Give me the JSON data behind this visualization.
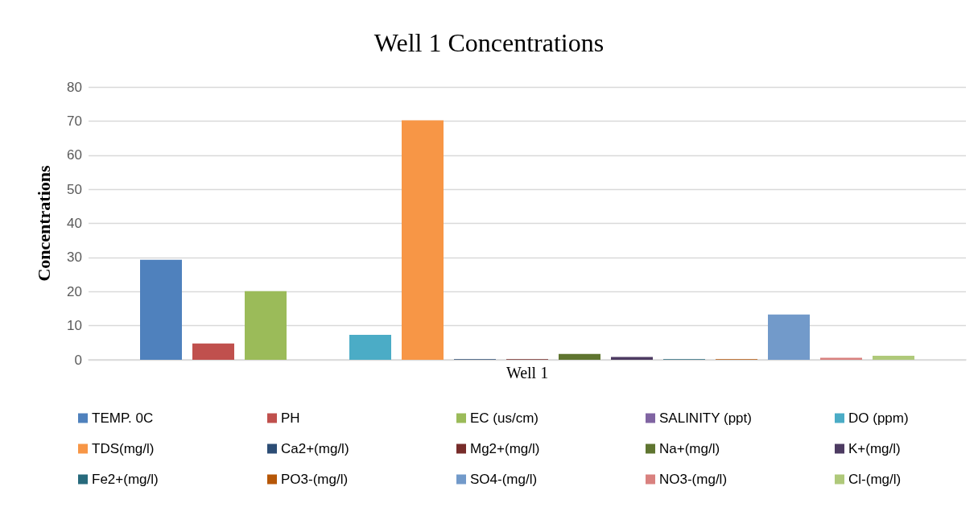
{
  "chart_data": {
    "type": "bar",
    "title": "Well 1 Concentrations",
    "ylabel": "Concentrations",
    "categories": [
      "Well 1"
    ],
    "series": [
      {
        "name": "TEMP. 0C",
        "color": "#4f81bd",
        "values": [
          29.3
        ]
      },
      {
        "name": "PH",
        "color": "#c0504d",
        "values": [
          4.8
        ]
      },
      {
        "name": "EC (us/cm)",
        "color": "#9bbb59",
        "values": [
          20.1
        ]
      },
      {
        "name": "SALINITY (ppt)",
        "color": "#8064a2",
        "values": [
          0
        ]
      },
      {
        "name": "DO (ppm)",
        "color": "#4bacc6",
        "values": [
          7.3
        ]
      },
      {
        "name": "TDS(mg/l)",
        "color": "#f79646",
        "values": [
          70.2
        ]
      },
      {
        "name": "Ca2+(mg/l)",
        "color": "#2c4d75",
        "values": [
          0.2
        ]
      },
      {
        "name": "Mg2+(mg/l)",
        "color": "#772c2a",
        "values": [
          0.2
        ]
      },
      {
        "name": "Na+(mg/l)",
        "color": "#5f7530",
        "values": [
          1.7
        ]
      },
      {
        "name": "K+(mg/l)",
        "color": "#4d3b62",
        "values": [
          0.8
        ]
      },
      {
        "name": "Fe2+(mg/l)",
        "color": "#276a7c",
        "values": [
          0.2
        ]
      },
      {
        "name": "PO3-(mg/l)",
        "color": "#b65708",
        "values": [
          0.2
        ]
      },
      {
        "name": "SO4-(mg/l)",
        "color": "#729aca",
        "values": [
          13.3
        ]
      },
      {
        "name": "NO3-(mg/l)",
        "color": "#d9817f",
        "values": [
          0.6
        ]
      },
      {
        "name": "Cl-(mg/l)",
        "color": "#afc97a",
        "values": [
          1.2
        ]
      }
    ],
    "ylim": [
      0,
      80
    ],
    "yticks": [
      0,
      10,
      20,
      30,
      40,
      50,
      60,
      70,
      80
    ],
    "grid": "y",
    "legend": "bottom"
  }
}
